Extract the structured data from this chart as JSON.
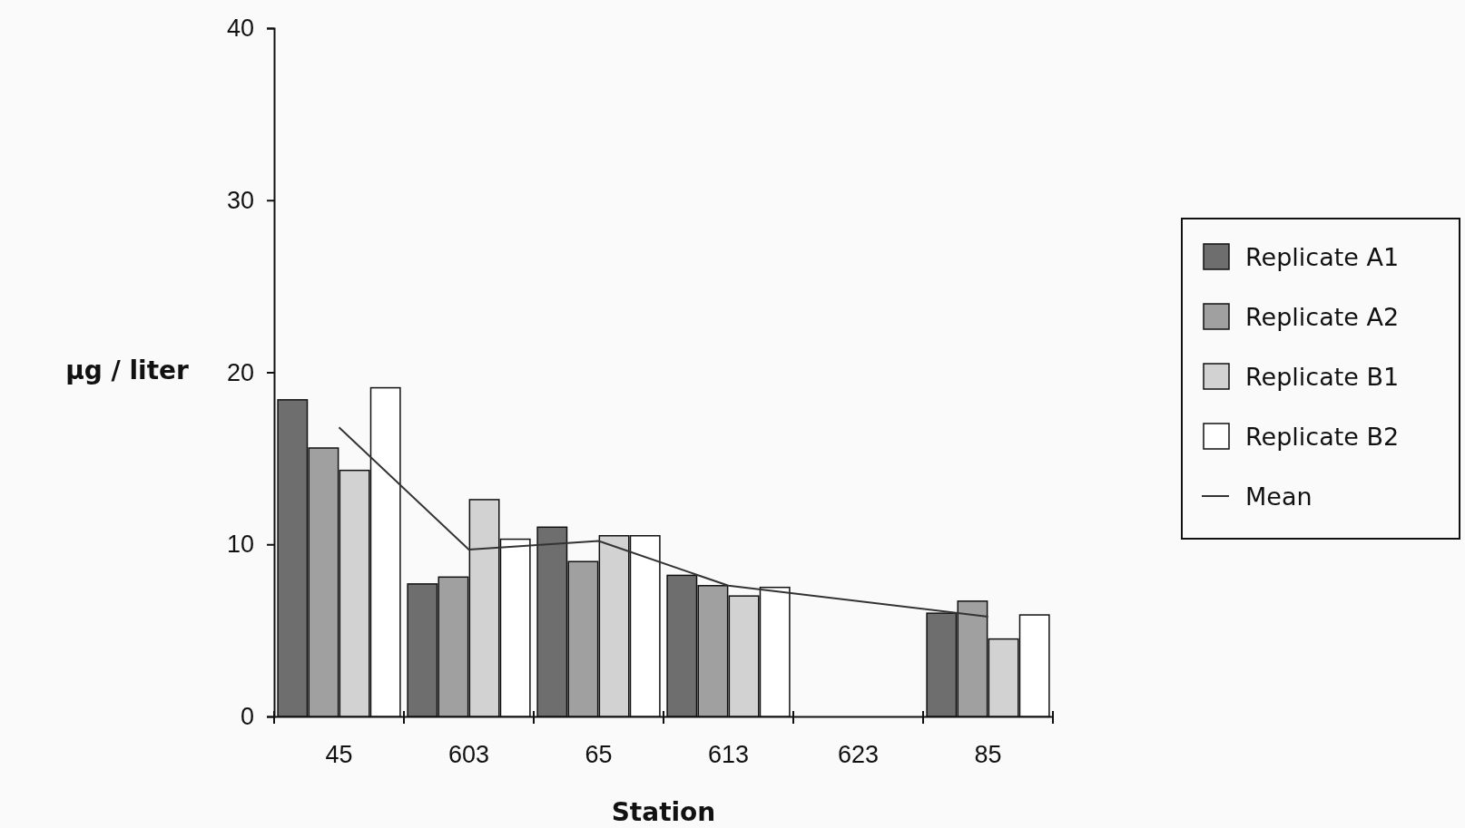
{
  "chart_data": {
    "type": "bar",
    "xlabel": "Station",
    "ylabel": "µg / liter",
    "categories": [
      "45",
      "603",
      "65",
      "613",
      "623",
      "85"
    ],
    "series": [
      {
        "name": "Replicate A1",
        "color": "#6e6e6e",
        "values": [
          18.4,
          7.7,
          11.0,
          8.2,
          null,
          6.0
        ]
      },
      {
        "name": "Replicate A2",
        "color": "#a0a0a0",
        "values": [
          15.6,
          8.1,
          9.0,
          7.6,
          null,
          6.7
        ]
      },
      {
        "name": "Replicate B1",
        "color": "#d2d2d2",
        "values": [
          14.3,
          12.6,
          10.5,
          7.0,
          null,
          4.5
        ]
      },
      {
        "name": "Replicate B2",
        "color": "#ffffff",
        "values": [
          19.1,
          10.3,
          10.5,
          7.5,
          null,
          5.9
        ]
      },
      {
        "name": "Mean",
        "type": "line",
        "color": "#333333",
        "values": [
          16.8,
          9.7,
          10.2,
          7.6,
          null,
          5.8
        ]
      }
    ],
    "ylim": [
      0,
      40
    ],
    "yticks": [
      0,
      10,
      20,
      30,
      40
    ],
    "grid": false,
    "legend": "right",
    "marker": "none"
  }
}
